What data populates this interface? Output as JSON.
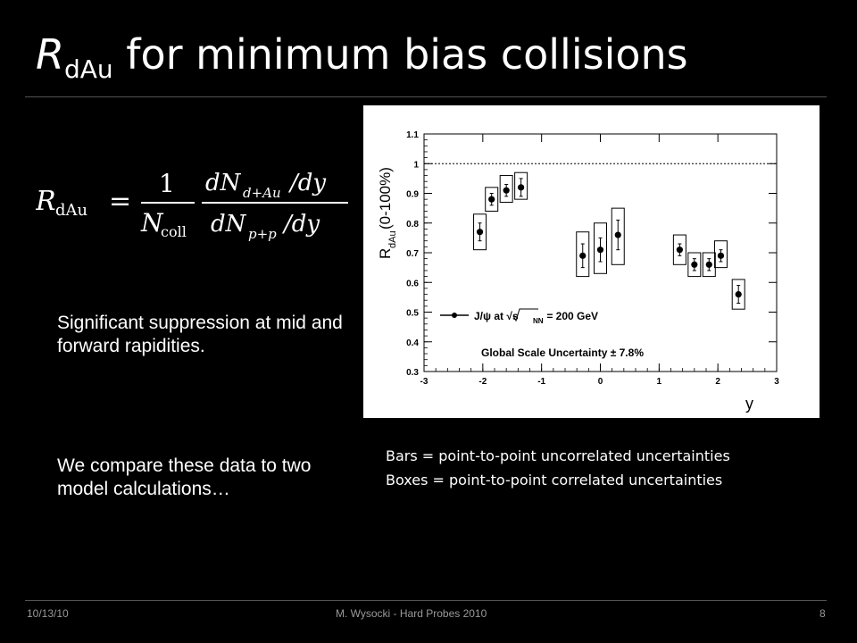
{
  "slide": {
    "title_r": "R",
    "title_sub": "dAu",
    "title_rest": " for minimum bias collisions",
    "formula": {
      "lhs": "R",
      "lhs_sub": "dAu",
      "equals": "=",
      "one": "1",
      "ncoll": "N",
      "ncoll_sub": "coll",
      "num": "dN",
      "num_sub": "d+Au",
      "num_tail": "/dy",
      "den": "dN",
      "den_sub": "p+p",
      "den_tail": "/dy"
    },
    "bullet1": "Significant suppression at mid and forward rapidities.",
    "bullet2": "We compare these data to two model calculations…",
    "caption1": "Bars = point-to-point uncorrelated uncertainties",
    "caption2": "Boxes = point-to-point correlated uncertainties",
    "footer": {
      "date": "10/13/10",
      "center": "M. Wysocki - Hard Probes 2010",
      "page": "8"
    }
  },
  "chart_data": {
    "type": "scatter",
    "xlim": [
      -3,
      3
    ],
    "ylim": [
      0.3,
      1.1
    ],
    "xticks": [
      -3,
      -2,
      -1,
      0,
      1,
      2,
      3
    ],
    "yticks": [
      0.3,
      0.4,
      0.5,
      0.6,
      0.7,
      0.8,
      0.9,
      1,
      1.1
    ],
    "xlabel": "y",
    "ylabel": "R",
    "ylabel_sub": "dAu",
    "ylabel_tail": "(0-100%)",
    "reference_line": 1.0,
    "legend": {
      "label": "J/ψ at √s",
      "label_sub": "NN",
      "label_tail": " = 200 GeV",
      "placement": "lower-left"
    },
    "annotation": "Global Scale Uncertainty ± 7.8%",
    "points": [
      {
        "x": -2.05,
        "y": 0.77,
        "stat": 0.03,
        "sys_lo": 0.71,
        "sys_hi": 0.83
      },
      {
        "x": -1.85,
        "y": 0.88,
        "stat": 0.02,
        "sys_lo": 0.84,
        "sys_hi": 0.92
      },
      {
        "x": -1.6,
        "y": 0.91,
        "stat": 0.02,
        "sys_lo": 0.87,
        "sys_hi": 0.96
      },
      {
        "x": -1.35,
        "y": 0.92,
        "stat": 0.03,
        "sys_lo": 0.88,
        "sys_hi": 0.97
      },
      {
        "x": -0.3,
        "y": 0.69,
        "stat": 0.04,
        "sys_lo": 0.62,
        "sys_hi": 0.77
      },
      {
        "x": 0.0,
        "y": 0.71,
        "stat": 0.04,
        "sys_lo": 0.63,
        "sys_hi": 0.8
      },
      {
        "x": 0.3,
        "y": 0.76,
        "stat": 0.05,
        "sys_lo": 0.66,
        "sys_hi": 0.85
      },
      {
        "x": 1.35,
        "y": 0.71,
        "stat": 0.02,
        "sys_lo": 0.66,
        "sys_hi": 0.76
      },
      {
        "x": 1.6,
        "y": 0.66,
        "stat": 0.02,
        "sys_lo": 0.62,
        "sys_hi": 0.7
      },
      {
        "x": 1.85,
        "y": 0.66,
        "stat": 0.02,
        "sys_lo": 0.62,
        "sys_hi": 0.7
      },
      {
        "x": 2.05,
        "y": 0.69,
        "stat": 0.02,
        "sys_lo": 0.65,
        "sys_hi": 0.74
      },
      {
        "x": 2.35,
        "y": 0.56,
        "stat": 0.03,
        "sys_lo": 0.51,
        "sys_hi": 0.61
      }
    ]
  }
}
